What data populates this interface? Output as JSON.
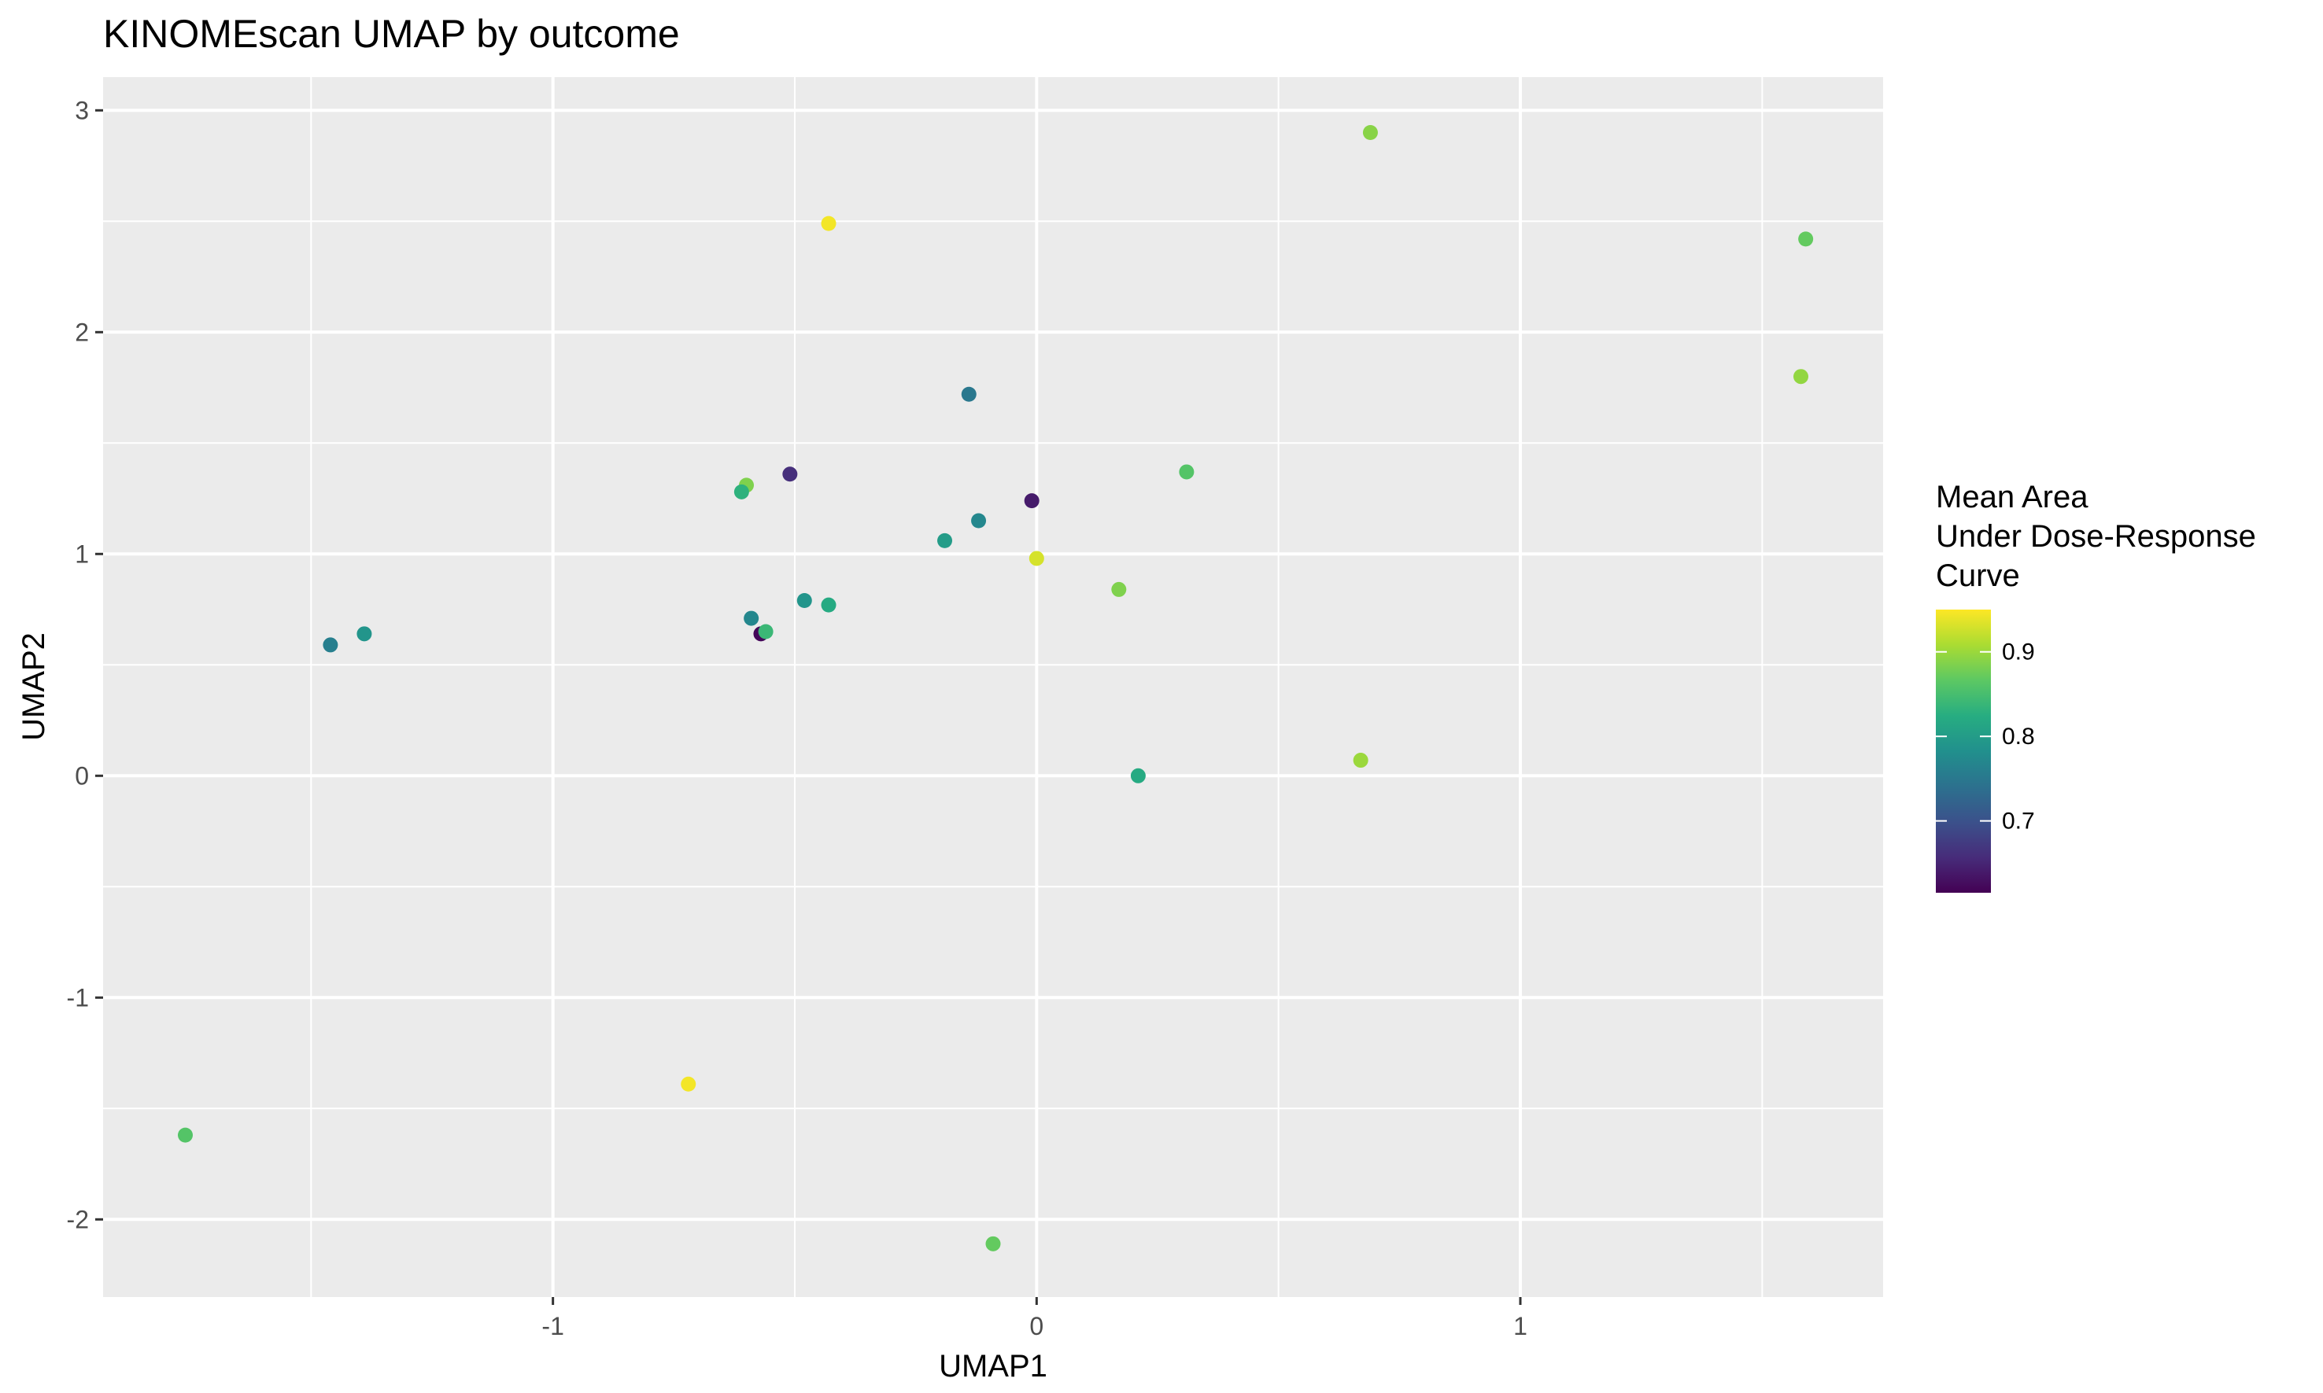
{
  "chart_data": {
    "type": "scatter",
    "title": "KINOMEscan UMAP by outcome",
    "xlabel": "UMAP1",
    "ylabel": "UMAP2",
    "xlim": [
      -1.93,
      1.75
    ],
    "ylim": [
      -2.35,
      3.15
    ],
    "x_ticks": [
      -1,
      0,
      1
    ],
    "x_tick_labels": [
      "-1",
      "0",
      "1"
    ],
    "y_ticks": [
      -2,
      -1,
      0,
      1,
      2,
      3
    ],
    "y_tick_labels": [
      "-2",
      "-1",
      "0",
      "1",
      "2",
      "3"
    ],
    "grid": true,
    "legend": {
      "title_lines": [
        "Mean Area",
        "Under Dose-Response",
        "Curve"
      ],
      "placement": "right",
      "min": 0.615,
      "max": 0.95,
      "ticks": [
        0.7,
        0.8,
        0.9
      ],
      "tick_labels": [
        "0.7",
        "0.8",
        "0.9"
      ]
    },
    "points": [
      {
        "x": 0.69,
        "y": 2.9,
        "v": 0.89
      },
      {
        "x": -0.43,
        "y": 2.49,
        "v": 0.945
      },
      {
        "x": 1.59,
        "y": 2.42,
        "v": 0.87
      },
      {
        "x": 1.58,
        "y": 1.8,
        "v": 0.895
      },
      {
        "x": -0.14,
        "y": 1.72,
        "v": 0.75
      },
      {
        "x": 0.31,
        "y": 1.37,
        "v": 0.86
      },
      {
        "x": -0.51,
        "y": 1.36,
        "v": 0.66
      },
      {
        "x": -0.6,
        "y": 1.31,
        "v": 0.885
      },
      {
        "x": -0.61,
        "y": 1.28,
        "v": 0.83
      },
      {
        "x": -0.01,
        "y": 1.24,
        "v": 0.64
      },
      {
        "x": -0.12,
        "y": 1.15,
        "v": 0.77
      },
      {
        "x": -0.19,
        "y": 1.06,
        "v": 0.8
      },
      {
        "x": 0.0,
        "y": 0.98,
        "v": 0.93
      },
      {
        "x": 0.17,
        "y": 0.84,
        "v": 0.885
      },
      {
        "x": -0.48,
        "y": 0.79,
        "v": 0.79
      },
      {
        "x": -0.43,
        "y": 0.77,
        "v": 0.82
      },
      {
        "x": -0.59,
        "y": 0.71,
        "v": 0.77
      },
      {
        "x": -0.57,
        "y": 0.64,
        "v": 0.62
      },
      {
        "x": -0.56,
        "y": 0.65,
        "v": 0.84
      },
      {
        "x": -1.39,
        "y": 0.64,
        "v": 0.79
      },
      {
        "x": -1.46,
        "y": 0.59,
        "v": 0.76
      },
      {
        "x": 0.21,
        "y": 0.0,
        "v": 0.82
      },
      {
        "x": 0.67,
        "y": 0.07,
        "v": 0.9
      },
      {
        "x": -0.72,
        "y": -1.39,
        "v": 0.945
      },
      {
        "x": -1.76,
        "y": -1.62,
        "v": 0.86
      },
      {
        "x": -0.09,
        "y": -2.11,
        "v": 0.87
      }
    ]
  }
}
